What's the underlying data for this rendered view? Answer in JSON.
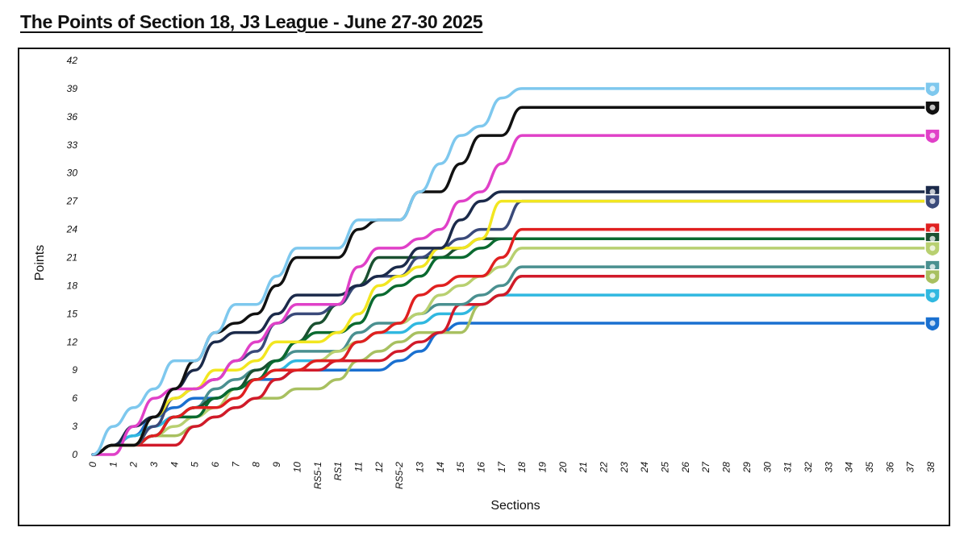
{
  "title": "The Points of Section 18, J3 League - June 27-30 2025",
  "chart_data": {
    "type": "line",
    "xlabel": "Sections",
    "ylabel": "Points",
    "ylim": [
      0,
      42
    ],
    "yticks": [
      0,
      3,
      6,
      9,
      12,
      15,
      18,
      21,
      24,
      27,
      30,
      33,
      36,
      39,
      42
    ],
    "categories": [
      "0",
      "1",
      "2",
      "3",
      "4",
      "5",
      "6",
      "7",
      "8",
      "9",
      "10",
      "RS5-1",
      "RS1",
      "11",
      "12",
      "RS5-2",
      "13",
      "14",
      "15",
      "16",
      "17",
      "18",
      "19",
      "20",
      "21",
      "22",
      "23",
      "24",
      "25",
      "26",
      "27",
      "28",
      "29",
      "30",
      "31",
      "32",
      "33",
      "34",
      "35",
      "36",
      "37",
      "38"
    ],
    "grid": false,
    "legend": "none",
    "series": [
      {
        "color": "#7ec8ee",
        "logo": "crest-sky",
        "values": [
          0,
          3,
          5,
          7,
          10,
          10,
          13,
          16,
          16,
          19,
          22,
          22,
          22,
          25,
          25,
          25,
          28,
          31,
          34,
          35,
          38,
          39,
          39,
          39,
          39,
          39,
          39,
          39,
          39,
          39,
          39,
          39,
          39,
          39,
          39,
          39,
          39,
          39,
          39,
          39,
          39,
          39
        ]
      },
      {
        "color": "#111111",
        "logo": "crest-black",
        "values": [
          0,
          1,
          1,
          4,
          7,
          10,
          13,
          14,
          15,
          18,
          21,
          21,
          21,
          24,
          25,
          25,
          28,
          28,
          31,
          34,
          34,
          37,
          37,
          37,
          37,
          37,
          37,
          37,
          37,
          37,
          37,
          37,
          37,
          37,
          37,
          37,
          37,
          37,
          37,
          37,
          37,
          37
        ]
      },
      {
        "color": "#e040c8",
        "logo": "crest-pink",
        "values": [
          0,
          0,
          3,
          6,
          7,
          7,
          8,
          10,
          12,
          14,
          16,
          16,
          16,
          20,
          22,
          22,
          23,
          24,
          27,
          28,
          31,
          34,
          34,
          34,
          34,
          34,
          34,
          34,
          34,
          34,
          34,
          34,
          34,
          34,
          34,
          34,
          34,
          34,
          34,
          34,
          34,
          34
        ]
      },
      {
        "color": "#1b2a4a",
        "logo": "crest-navy",
        "values": [
          0,
          1,
          3,
          4,
          7,
          9,
          12,
          13,
          13,
          15,
          17,
          17,
          17,
          18,
          19,
          20,
          22,
          22,
          25,
          27,
          28,
          28,
          28,
          28,
          28,
          28,
          28,
          28,
          28,
          28,
          28,
          28,
          28,
          28,
          28,
          28,
          28,
          28,
          28,
          28,
          28,
          28
        ]
      },
      {
        "color": "#f2e620",
        "logo": "crest-yellow",
        "values": [
          0,
          1,
          1,
          4,
          6,
          7,
          9,
          9,
          10,
          12,
          12,
          12,
          13,
          15,
          18,
          19,
          20,
          22,
          22,
          23,
          27,
          27,
          27,
          27,
          27,
          27,
          27,
          27,
          27,
          27,
          27,
          27,
          27,
          27,
          27,
          27,
          27,
          27,
          27,
          27,
          27,
          27
        ]
      },
      {
        "color": "#3a4a7a",
        "logo": "crest-indigo",
        "values": [
          0,
          1,
          1,
          3,
          6,
          7,
          8,
          10,
          11,
          14,
          15,
          15,
          16,
          18,
          19,
          19,
          21,
          22,
          23,
          24,
          24,
          27,
          27,
          27,
          27,
          27,
          27,
          27,
          27,
          27,
          27,
          27,
          27,
          27,
          27,
          27,
          27,
          27,
          27,
          27,
          27,
          27
        ]
      },
      {
        "color": "#e02020",
        "logo": "crest-red",
        "values": [
          0,
          1,
          1,
          2,
          4,
          5,
          5,
          6,
          8,
          9,
          9,
          10,
          10,
          12,
          13,
          14,
          17,
          18,
          19,
          19,
          21,
          24,
          24,
          24,
          24,
          24,
          24,
          24,
          24,
          24,
          24,
          24,
          24,
          24,
          24,
          24,
          24,
          24,
          24,
          24,
          24,
          24
        ]
      },
      {
        "color": "#0a6a30",
        "logo": "crest-green",
        "values": [
          0,
          1,
          1,
          2,
          4,
          4,
          6,
          7,
          8,
          10,
          12,
          13,
          13,
          14,
          17,
          18,
          19,
          21,
          21,
          22,
          23,
          23,
          23,
          23,
          23,
          23,
          23,
          23,
          23,
          23,
          23,
          23,
          23,
          23,
          23,
          23,
          23,
          23,
          23,
          23,
          23,
          23
        ]
      },
      {
        "color": "#1a5030",
        "logo": "crest-darkgreen",
        "values": [
          0,
          1,
          1,
          2,
          4,
          5,
          6,
          7,
          9,
          10,
          12,
          14,
          16,
          18,
          21,
          21,
          21,
          21,
          22,
          23,
          23,
          23,
          23,
          23,
          23,
          23,
          23,
          23,
          23,
          23,
          23,
          23,
          23,
          23,
          23,
          23,
          23,
          23,
          23,
          23,
          23,
          23
        ]
      },
      {
        "color": "#b8d070",
        "logo": "crest-lime",
        "values": [
          0,
          1,
          1,
          2,
          3,
          4,
          5,
          7,
          8,
          9,
          9,
          10,
          11,
          12,
          13,
          14,
          15,
          17,
          18,
          19,
          20,
          22,
          22,
          22,
          22,
          22,
          22,
          22,
          22,
          22,
          22,
          22,
          22,
          22,
          22,
          22,
          22,
          22,
          22,
          22,
          22,
          22
        ]
      },
      {
        "color": "#4a9090",
        "logo": "crest-teal",
        "values": [
          0,
          1,
          1,
          2,
          4,
          5,
          7,
          8,
          9,
          10,
          11,
          11,
          11,
          13,
          14,
          14,
          15,
          16,
          16,
          17,
          18,
          20,
          20,
          20,
          20,
          20,
          20,
          20,
          20,
          20,
          20,
          20,
          20,
          20,
          20,
          20,
          20,
          20,
          20,
          20,
          20,
          20
        ]
      },
      {
        "color": "#d11a2a",
        "logo": "crest-crimson",
        "values": [
          0,
          1,
          1,
          1,
          1,
          3,
          4,
          5,
          6,
          8,
          9,
          9,
          10,
          10,
          10,
          11,
          12,
          13,
          16,
          16,
          17,
          19,
          19,
          19,
          19,
          19,
          19,
          19,
          19,
          19,
          19,
          19,
          19,
          19,
          19,
          19,
          19,
          19,
          19,
          19,
          19,
          19
        ]
      },
      {
        "color": "#a8c060",
        "logo": "crest-olive",
        "values": [
          0,
          1,
          1,
          2,
          2,
          3,
          4,
          5,
          6,
          6,
          7,
          7,
          8,
          10,
          11,
          12,
          13,
          13,
          13,
          16,
          17,
          19,
          19,
          19,
          19,
          19,
          19,
          19,
          19,
          19,
          19,
          19,
          19,
          19,
          19,
          19,
          19,
          19,
          19,
          19,
          19,
          19
        ]
      },
      {
        "color": "#30b8e0",
        "logo": "crest-cyan",
        "values": [
          0,
          1,
          2,
          3,
          4,
          5,
          6,
          7,
          8,
          9,
          10,
          10,
          10,
          12,
          13,
          13,
          14,
          15,
          15,
          16,
          17,
          17,
          17,
          17,
          17,
          17,
          17,
          17,
          17,
          17,
          17,
          17,
          17,
          17,
          17,
          17,
          17,
          17,
          17,
          17,
          17,
          17
        ]
      },
      {
        "color": "#1a70d0",
        "logo": "crest-blue",
        "values": [
          0,
          1,
          2,
          4,
          5,
          6,
          6,
          7,
          8,
          8,
          9,
          9,
          9,
          9,
          9,
          10,
          11,
          13,
          14,
          14,
          14,
          14,
          14,
          14,
          14,
          14,
          14,
          14,
          14,
          14,
          14,
          14,
          14,
          14,
          14,
          14,
          14,
          14,
          14,
          14,
          14,
          14
        ]
      }
    ]
  }
}
